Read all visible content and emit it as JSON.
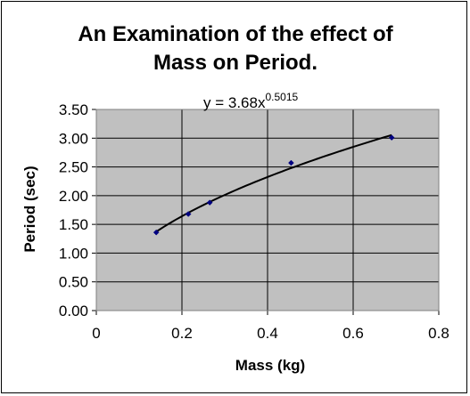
{
  "chart_data": {
    "type": "scatter",
    "title_lines": [
      "An Examination of the effect of",
      "Mass on Period."
    ],
    "xlabel": "Mass (kg)",
    "ylabel": "Period (sec)",
    "xlim": [
      0,
      0.8
    ],
    "ylim": [
      0,
      3.5
    ],
    "x_ticks": [
      0,
      0.2,
      0.4,
      0.6,
      0.8
    ],
    "x_tick_labels": [
      "0",
      "0.2",
      "0.4",
      "0.6",
      "0.8"
    ],
    "y_ticks": [
      0,
      0.5,
      1,
      1.5,
      2,
      2.5,
      3,
      3.5
    ],
    "y_tick_labels": [
      "0.00",
      "0.50",
      "1.00",
      "1.50",
      "2.00",
      "2.50",
      "3.00",
      "3.50"
    ],
    "grid": "major vertical and horizontal",
    "legend": "none",
    "series": [
      {
        "x": [
          0.14,
          0.215,
          0.265,
          0.455,
          0.69
        ],
        "y": [
          1.36,
          1.68,
          1.88,
          2.57,
          3.01
        ],
        "color": "#000080"
      }
    ],
    "trendline": {
      "type": "power",
      "coefficient": 3.68,
      "exponent": 0.5015,
      "x_range": [
        0.14,
        0.69
      ],
      "equation_text": "y = 3.68x",
      "equation_exponent_text": "0.5015",
      "color": "#000000"
    },
    "plot_background": "#C0C0C0",
    "gridline_color": "#000000"
  }
}
